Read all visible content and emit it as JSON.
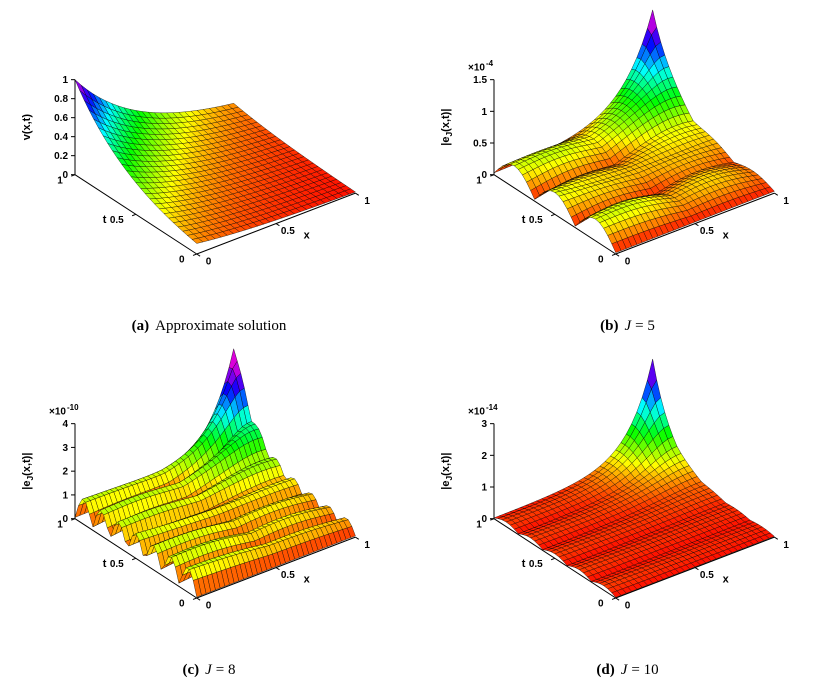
{
  "figure": {
    "background": "#ffffff",
    "mesh_color": "#000000",
    "colormap": "rainbow: red (low) through orange, yellow, green, cyan, blue to magenta (high)",
    "description": "2x2 grid of MATLAB-style 3D surface plots: approximate solution and absolute error surfaces for J = 5, 8, 10"
  },
  "chart_data": [
    {
      "id": "a",
      "type": "surface",
      "caption": {
        "label": "(a)",
        "italic": "",
        "text": "Approximate solution"
      },
      "xlabel": "x",
      "ylabel": "t",
      "zlabel": {
        "pre": "v(x,t)",
        "sub": "",
        "post": ""
      },
      "exponent": null,
      "x_range": [
        0,
        1
      ],
      "t_range": [
        0,
        1
      ],
      "x_tick_values": [
        0,
        0.5,
        1
      ],
      "x_tick_labels": [
        "0",
        "0.5",
        "1"
      ],
      "t_tick_values": [
        0,
        0.5,
        1
      ],
      "t_tick_labels": [
        "0",
        "0.5",
        "1"
      ],
      "z_tick_values": [
        0,
        0.2,
        0.4,
        0.6,
        0.8,
        1
      ],
      "z_tick_labels": [
        "0",
        "0.2",
        "0.4",
        "0.6",
        "0.8",
        "1"
      ],
      "z_axis_max": 1,
      "z_peak_approx": 1,
      "surface_model": {
        "kind": "exp_decay",
        "rate": 2.2,
        "formula": "v(x,t) ~ exp(-2.2*(x + 1 - t)); maximum 1 at (x=0, t=1), decaying toward (x=1, t=0)"
      },
      "grid_n": 26,
      "view": {
        "azimuth": -37.5,
        "elevation": 30
      }
    },
    {
      "id": "b",
      "type": "surface",
      "caption": {
        "label": "(b)",
        "italic": "J",
        "text": "= 5"
      },
      "xlabel": "x",
      "ylabel": "t",
      "zlabel": {
        "pre": "|e",
        "sub": "J",
        "post": "(x,t)|"
      },
      "exponent": {
        "base": "×10",
        "power": "-4"
      },
      "x_range": [
        0,
        1
      ],
      "t_range": [
        0,
        1
      ],
      "x_tick_values": [
        0,
        0.5,
        1
      ],
      "x_tick_labels": [
        "0",
        "0.5",
        "1"
      ],
      "t_tick_values": [
        0,
        0.5,
        1
      ],
      "t_tick_labels": [
        "0",
        "0.5",
        "1"
      ],
      "z_tick_values": [
        0,
        0.5,
        1,
        1.5
      ],
      "z_tick_labels": [
        "0",
        "0.5",
        "1",
        "1.5"
      ],
      "z_axis_max": 1.5,
      "z_scale": 0.0001,
      "z_peak_approx": 0.00016,
      "surface_model": {
        "kind": "error",
        "peak": 1.62,
        "spike_rate": 5.2,
        "ripple_amp": 0.32,
        "ripple_freq": 3,
        "ripple_decay": 1.3,
        "cross_amp": 0.1,
        "base": 0.02,
        "formula": "sharp spike ~1.6e-4 at (x=1,t=1) plus 3 low oscillation ridges along t"
      },
      "grid_n": 30,
      "view": {
        "azimuth": -37.5,
        "elevation": 30
      }
    },
    {
      "id": "c",
      "type": "surface",
      "caption": {
        "label": "(c)",
        "italic": "J",
        "text": "= 8"
      },
      "xlabel": "x",
      "ylabel": "t",
      "zlabel": {
        "pre": "|e",
        "sub": "J",
        "post": "(x,t)|"
      },
      "exponent": {
        "base": "×10",
        "power": "-10"
      },
      "x_range": [
        0,
        1
      ],
      "t_range": [
        0,
        1
      ],
      "x_tick_values": [
        0,
        0.5,
        1
      ],
      "x_tick_labels": [
        "0",
        "0.5",
        "1"
      ],
      "t_tick_values": [
        0,
        0.5,
        1
      ],
      "t_tick_labels": [
        "0",
        "0.5",
        "1"
      ],
      "z_tick_values": [
        0,
        1,
        2,
        3,
        4
      ],
      "z_tick_labels": [
        "0",
        "1",
        "2",
        "3",
        "4"
      ],
      "z_axis_max": 4,
      "z_scale": 1e-10,
      "z_peak_approx": 4.5e-10,
      "surface_model": {
        "kind": "error",
        "peak": 4.55,
        "spike_rate": 5.8,
        "ripple_amp": 1.0,
        "ripple_freq": 7,
        "ripple_decay": 0.7,
        "cross_amp": 0.15,
        "base": 0.04,
        "formula": "sharp spike ~4.5e-10 at (x=1,t=1) plus 7 oscillation ridges along t of height ~1e-10"
      },
      "grid_n": 34,
      "view": {
        "azimuth": -37.5,
        "elevation": 30
      }
    },
    {
      "id": "d",
      "type": "surface",
      "caption": {
        "label": "(d)",
        "italic": "J",
        "text": "= 10"
      },
      "xlabel": "x",
      "ylabel": "t",
      "zlabel": {
        "pre": "|e",
        "sub": "J",
        "post": "(x,t)|"
      },
      "exponent": {
        "base": "×10",
        "power": "-14"
      },
      "x_range": [
        0,
        1
      ],
      "t_range": [
        0,
        1
      ],
      "x_tick_values": [
        0,
        0.5,
        1
      ],
      "x_tick_labels": [
        "0",
        "0.5",
        "1"
      ],
      "t_tick_values": [
        0,
        0.5,
        1
      ],
      "t_tick_labels": [
        "0",
        "0.5",
        "1"
      ],
      "z_tick_values": [
        0,
        1,
        2,
        3
      ],
      "z_tick_labels": [
        "0",
        "1",
        "2",
        "3"
      ],
      "z_axis_max": 3,
      "z_scale": 1e-14,
      "z_peak_approx": 3.1e-14,
      "surface_model": {
        "kind": "error",
        "peak": 3.1,
        "spike_rate": 6.5,
        "ripple_amp": 0.12,
        "ripple_freq": 5,
        "ripple_decay": 1.0,
        "cross_amp": 0,
        "base": 0.02,
        "formula": "nearly flat floor with single narrow spike ~3.1e-14 at (x=1,t=1)"
      },
      "grid_n": 30,
      "view": {
        "azimuth": -37.5,
        "elevation": 30
      }
    }
  ]
}
